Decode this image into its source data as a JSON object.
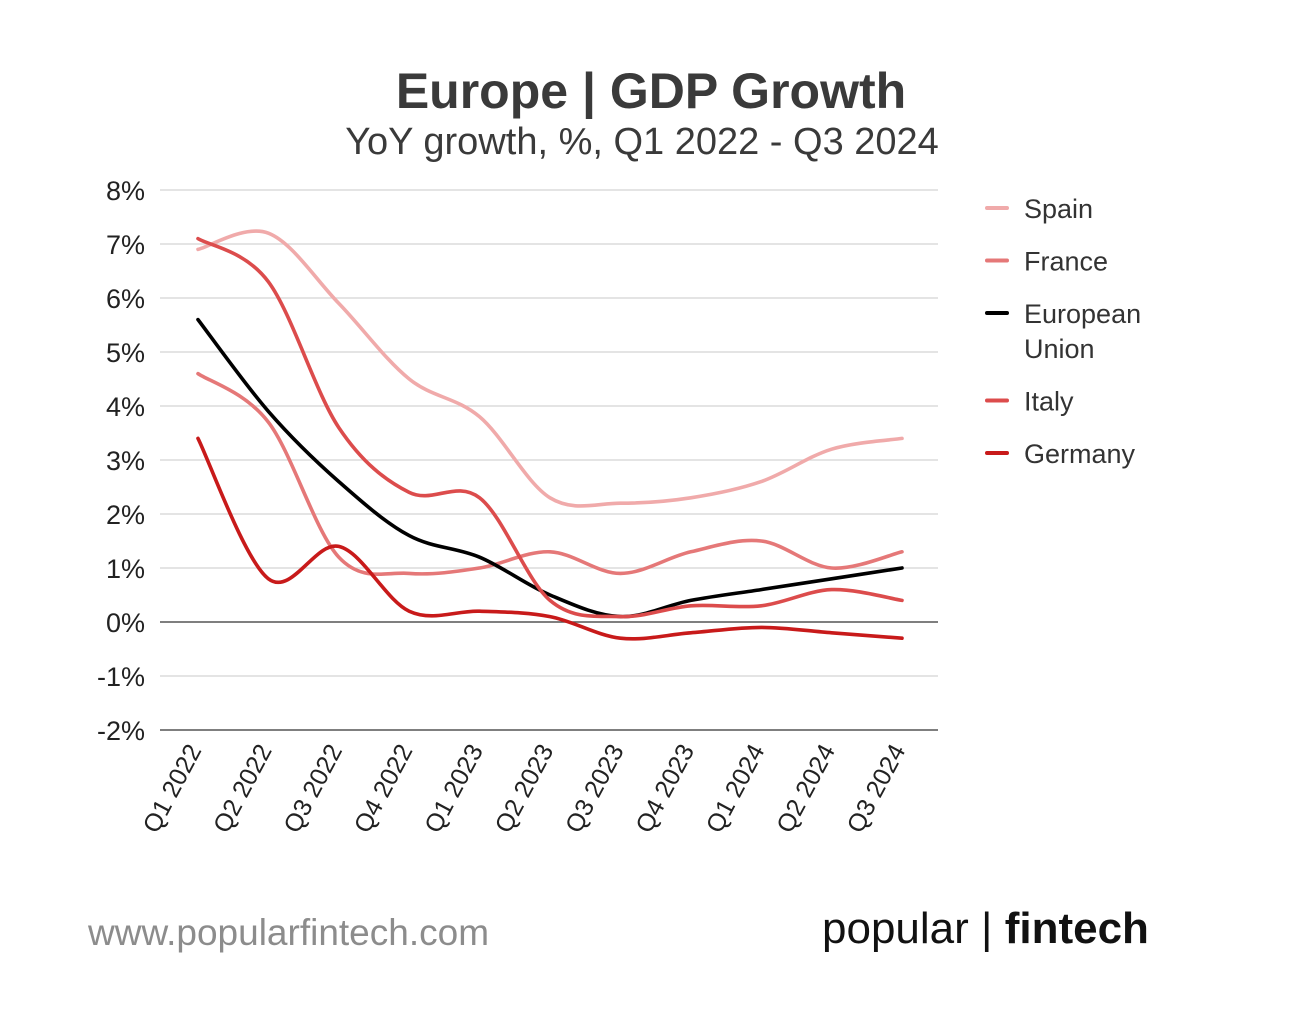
{
  "header": {
    "title": "Europe | GDP Growth",
    "subtitle": "YoY growth, %, Q1 2022 - Q3 2024"
  },
  "footer": {
    "url": "www.popularfintech.com",
    "brand_light": "popular",
    "brand_separator": "|",
    "brand_bold": "fintech"
  },
  "chart_data": {
    "type": "line",
    "title": "Europe | GDP Growth",
    "subtitle": "YoY growth, %, Q1 2022 - Q3 2024",
    "xlabel": "",
    "ylabel": "",
    "categories": [
      "Q1 2022",
      "Q2 2022",
      "Q3 2022",
      "Q4 2022",
      "Q1 2023",
      "Q2 2023",
      "Q3 2023",
      "Q4 2023",
      "Q1 2024",
      "Q2 2024",
      "Q3 2024"
    ],
    "ylim": [
      -2,
      8
    ],
    "yticks": [
      8,
      7,
      6,
      5,
      4,
      3,
      2,
      1,
      0,
      -1,
      -2
    ],
    "ytick_labels": [
      "8%",
      "7%",
      "6%",
      "5%",
      "4%",
      "3%",
      "2%",
      "1%",
      "0%",
      "-1%",
      "-2%"
    ],
    "grid": true,
    "legend_position": "right",
    "series": [
      {
        "name": "Spain",
        "color": "#f0aaaa",
        "values": [
          6.9,
          7.2,
          5.9,
          4.5,
          3.8,
          2.3,
          2.2,
          2.3,
          2.6,
          3.2,
          3.4
        ]
      },
      {
        "name": "France",
        "color": "#e57878",
        "values": [
          4.6,
          3.7,
          1.2,
          0.9,
          1.0,
          1.3,
          0.9,
          1.3,
          1.5,
          1.0,
          1.3
        ]
      },
      {
        "name": "European Union",
        "name_lines": [
          "European",
          "Union"
        ],
        "color": "#000000",
        "values": [
          5.6,
          3.9,
          2.6,
          1.6,
          1.2,
          0.5,
          0.1,
          0.4,
          0.6,
          0.8,
          1.0
        ]
      },
      {
        "name": "Italy",
        "color": "#dc4c4c",
        "values": [
          7.1,
          6.3,
          3.6,
          2.4,
          2.3,
          0.4,
          0.1,
          0.3,
          0.3,
          0.6,
          0.4
        ]
      },
      {
        "name": "Germany",
        "color": "#c81a1a",
        "values": [
          3.4,
          0.8,
          1.4,
          0.2,
          0.2,
          0.1,
          -0.3,
          -0.2,
          -0.1,
          -0.2,
          -0.3
        ]
      }
    ]
  }
}
